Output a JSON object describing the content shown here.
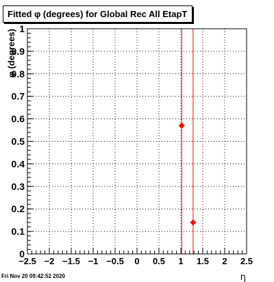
{
  "title": "Fitted φ (degrees) for Global Rec All EtapT",
  "footer_timestamp": "Fri Nov 20 09:42:52 2020",
  "chart_data": {
    "type": "scatter",
    "title": "Fitted φ (degrees) for Global Rec All EtapT",
    "xlabel": "η",
    "ylabel": "φ (degrees)",
    "xlim": [
      -2.5,
      2.5
    ],
    "ylim": [
      0,
      1
    ],
    "grid": true,
    "x_ticks": [
      -2.5,
      -2,
      -1.5,
      -1,
      -0.5,
      0,
      0.5,
      1,
      1.5,
      2,
      2.5
    ],
    "x_tick_labels": [
      "−2.5",
      "−2",
      "−1.5",
      "−1",
      "−0.5",
      "0",
      "0.5",
      "1",
      "1.5",
      "2",
      "2.5"
    ],
    "y_ticks": [
      0,
      0.1,
      0.2,
      0.3,
      0.4,
      0.5,
      0.6,
      0.7,
      0.8,
      0.9,
      1
    ],
    "y_tick_labels": [
      "0",
      "0.1",
      "0.2",
      "0.3",
      "0.4",
      "0.5",
      "0.6",
      "0.7",
      "0.8",
      "0.9",
      "1"
    ],
    "points": [
      {
        "x": 1.02,
        "y": 0.57
      },
      {
        "x": 1.28,
        "y": 0.14
      }
    ],
    "vertical_lines": [
      1.02,
      1.28
    ],
    "marker_color": "#ff0000",
    "line_color": "#ff0000"
  }
}
